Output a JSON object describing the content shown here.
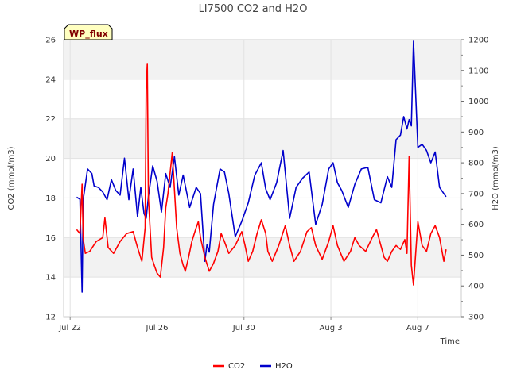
{
  "chart_data": {
    "type": "line",
    "title": "LI7500 CO2 and H2O",
    "badge": "WP_flux",
    "xlabel": "Time",
    "ylabel_left": "CO2 (mmol/m3)",
    "ylabel_right": "H2O (mmol/m3)",
    "x_unit": "days since Jul 22 00:00",
    "xlim": [
      -0.3,
      18.0
    ],
    "ylim_left": [
      12,
      26
    ],
    "ylim_right": [
      300,
      1200
    ],
    "x_ticks": [
      {
        "value": 0,
        "label": "Jul 22"
      },
      {
        "value": 4,
        "label": "Jul 26"
      },
      {
        "value": 8,
        "label": "Jul 30"
      },
      {
        "value": 12,
        "label": "Aug 3"
      },
      {
        "value": 16,
        "label": "Aug 7"
      }
    ],
    "y_ticks_left": [
      "12",
      "14",
      "16",
      "18",
      "20",
      "22",
      "24",
      "26"
    ],
    "y_ticks_right": [
      "300",
      "400",
      "500",
      "600",
      "700",
      "800",
      "900",
      "1000",
      "1100",
      "1200"
    ],
    "grid": true,
    "shaded_bands_left": [
      [
        14,
        16
      ],
      [
        20,
        22
      ],
      [
        24,
        26
      ]
    ],
    "legend_position": "bottom-center",
    "series": [
      {
        "name": "CO2",
        "axis": "left",
        "color": "#ff0000",
        "x": [
          0.3,
          0.45,
          0.55,
          0.6,
          0.62,
          0.7,
          0.9,
          1.2,
          1.5,
          1.6,
          1.75,
          2.0,
          2.3,
          2.6,
          2.9,
          3.1,
          3.3,
          3.45,
          3.5,
          3.55,
          3.6,
          3.75,
          3.9,
          4.0,
          4.15,
          4.3,
          4.4,
          4.5,
          4.7,
          4.9,
          5.05,
          5.2,
          5.3,
          5.45,
          5.6,
          5.8,
          5.9,
          6.0,
          6.2,
          6.4,
          6.6,
          6.8,
          6.95,
          7.1,
          7.3,
          7.6,
          7.9,
          8.05,
          8.2,
          8.4,
          8.6,
          8.8,
          9.0,
          9.1,
          9.3,
          9.6,
          9.9,
          10.1,
          10.3,
          10.6,
          10.9,
          11.1,
          11.3,
          11.6,
          11.9,
          12.1,
          12.3,
          12.6,
          12.9,
          13.1,
          13.3,
          13.6,
          13.9,
          14.1,
          14.3,
          14.45,
          14.6,
          14.8,
          15.0,
          15.2,
          15.4,
          15.5,
          15.6,
          15.7,
          15.8,
          16.0,
          16.2,
          16.4,
          16.6,
          16.8,
          17.0,
          17.2,
          17.3
        ],
        "values": [
          16.4,
          16.2,
          18.7,
          16.0,
          15.8,
          15.2,
          15.3,
          15.8,
          16.0,
          17.0,
          15.5,
          15.2,
          15.8,
          16.2,
          16.3,
          15.5,
          14.8,
          16.5,
          23.5,
          24.8,
          18.0,
          15.0,
          14.5,
          14.2,
          14.0,
          15.5,
          17.5,
          18.2,
          20.3,
          16.5,
          15.2,
          14.6,
          14.3,
          15.0,
          15.8,
          16.5,
          16.8,
          16.0,
          15.0,
          14.3,
          14.7,
          15.3,
          16.2,
          15.8,
          15.2,
          15.6,
          16.3,
          15.6,
          14.8,
          15.3,
          16.2,
          16.9,
          16.2,
          15.3,
          14.8,
          15.6,
          16.6,
          15.6,
          14.8,
          15.3,
          16.3,
          16.5,
          15.6,
          14.9,
          15.8,
          16.6,
          15.6,
          14.8,
          15.3,
          16.0,
          15.6,
          15.3,
          16.0,
          16.4,
          15.6,
          15.0,
          14.8,
          15.3,
          15.6,
          15.4,
          15.9,
          15.2,
          20.1,
          14.6,
          13.6,
          16.8,
          15.6,
          15.3,
          16.2,
          16.6,
          16.0,
          14.8,
          15.4
        ]
      },
      {
        "name": "H2O",
        "axis": "right",
        "color": "#0000cc",
        "x": [
          0.3,
          0.45,
          0.55,
          0.6,
          0.65,
          0.8,
          1.0,
          1.1,
          1.3,
          1.5,
          1.7,
          1.9,
          2.1,
          2.3,
          2.5,
          2.7,
          2.9,
          3.1,
          3.25,
          3.4,
          3.5,
          3.6,
          3.8,
          4.0,
          4.2,
          4.4,
          4.6,
          4.8,
          5.0,
          5.2,
          5.5,
          5.8,
          6.0,
          6.2,
          6.3,
          6.4,
          6.6,
          6.9,
          7.1,
          7.3,
          7.6,
          7.9,
          8.2,
          8.5,
          8.8,
          9.0,
          9.2,
          9.5,
          9.8,
          10.1,
          10.4,
          10.7,
          11.0,
          11.3,
          11.6,
          11.9,
          12.1,
          12.3,
          12.5,
          12.8,
          13.1,
          13.4,
          13.7,
          14.0,
          14.3,
          14.6,
          14.8,
          15.0,
          15.2,
          15.35,
          15.5,
          15.6,
          15.7,
          15.8,
          16.0,
          16.2,
          16.4,
          16.6,
          16.8,
          17.0,
          17.2,
          17.3
        ],
        "values": [
          688,
          682,
          380,
          680,
          705,
          780,
          765,
          725,
          720,
          705,
          680,
          745,
          710,
          695,
          815,
          680,
          780,
          625,
          720,
          635,
          620,
          690,
          790,
          740,
          640,
          765,
          720,
          820,
          695,
          760,
          655,
          720,
          700,
          480,
          535,
          510,
          665,
          780,
          770,
          700,
          560,
          610,
          670,
          760,
          800,
          715,
          680,
          735,
          840,
          620,
          720,
          750,
          770,
          600,
          665,
          780,
          800,
          735,
          710,
          655,
          730,
          780,
          785,
          680,
          670,
          755,
          720,
          875,
          890,
          950,
          910,
          940,
          920,
          1195,
          850,
          860,
          840,
          800,
          835,
          720,
          700,
          690
        ]
      }
    ]
  }
}
